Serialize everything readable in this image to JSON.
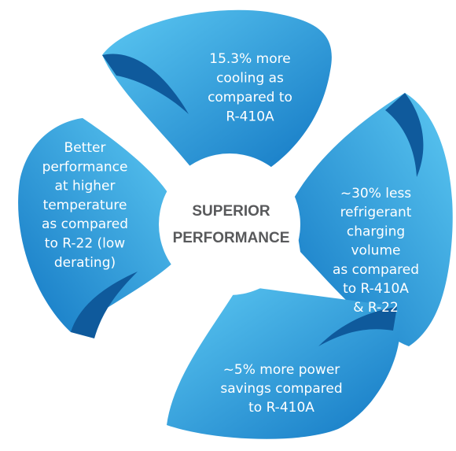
{
  "center": {
    "lines": [
      "SUPERIOR",
      "PERFORMANCE"
    ]
  },
  "petals": [
    {
      "lines": [
        "15.3% more",
        "cooling as",
        "compared to",
        "R-410A"
      ]
    },
    {
      "lines": [
        "~30% less",
        "refrigerant",
        "charging",
        "volume",
        "as compared",
        "to R-410A",
        "& R-22"
      ]
    },
    {
      "lines": [
        "~5% more power",
        "savings compared",
        "to R-410A"
      ]
    },
    {
      "lines": [
        "Better",
        "performance",
        "at higher",
        "temperature",
        "as compared",
        "to R-22 (low",
        "derating)"
      ]
    }
  ]
}
